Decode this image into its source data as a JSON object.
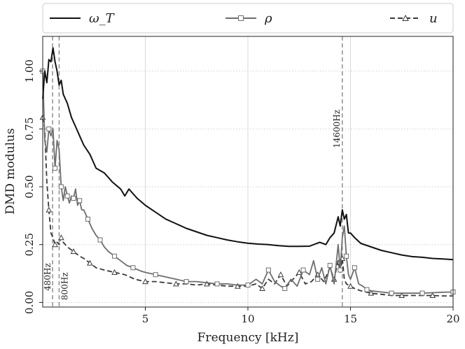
{
  "chart_data": {
    "type": "line",
    "title": "",
    "xlabel": "Frequency [kHz]",
    "ylabel": "DMD modulus",
    "xlim": [
      0,
      20
    ],
    "ylim": [
      -0.02,
      1.15
    ],
    "grid": true,
    "legend_position": "top",
    "xticks": [
      5,
      10,
      15,
      20
    ],
    "xtick_labels": [
      "5",
      "10",
      "15",
      "20"
    ],
    "yticks": [
      0.0,
      0.25,
      0.5,
      0.75,
      1.0
    ],
    "ytick_labels": [
      "0.00",
      "0.25",
      "0.50",
      "0.75",
      "1.00"
    ],
    "reference_lines": [
      {
        "x": 0.48,
        "label": "480Hz"
      },
      {
        "x": 0.8,
        "label": "800Hz"
      },
      {
        "x": 14.6,
        "label": "14600Hz"
      }
    ],
    "series": [
      {
        "name": "ω_T",
        "color": "#111111",
        "style": "solid",
        "marker": "none",
        "x": [
          0.0,
          0.1,
          0.2,
          0.3,
          0.4,
          0.5,
          0.6,
          0.7,
          0.8,
          0.9,
          1.0,
          1.2,
          1.4,
          1.6,
          1.8,
          2.0,
          2.3,
          2.6,
          3.0,
          3.4,
          3.8,
          4.0,
          4.2,
          4.6,
          5.0,
          5.5,
          6.0,
          6.5,
          7.0,
          7.5,
          8.0,
          8.5,
          9.0,
          9.5,
          10.0,
          10.5,
          11.0,
          11.5,
          12.0,
          12.5,
          13.0,
          13.5,
          13.8,
          14.0,
          14.2,
          14.4,
          14.5,
          14.6,
          14.7,
          14.8,
          14.9,
          15.0,
          15.2,
          15.5,
          16.0,
          16.5,
          17.0,
          17.5,
          18.0,
          18.5,
          19.0,
          19.5,
          20.0
        ],
        "y": [
          0.88,
          1.0,
          0.95,
          1.05,
          1.04,
          1.1,
          1.04,
          1.0,
          0.94,
          0.96,
          0.9,
          0.86,
          0.8,
          0.76,
          0.72,
          0.68,
          0.64,
          0.58,
          0.56,
          0.52,
          0.49,
          0.46,
          0.49,
          0.45,
          0.42,
          0.39,
          0.36,
          0.34,
          0.32,
          0.305,
          0.29,
          0.28,
          0.27,
          0.262,
          0.256,
          0.252,
          0.25,
          0.245,
          0.242,
          0.242,
          0.243,
          0.26,
          0.25,
          0.28,
          0.3,
          0.37,
          0.33,
          0.4,
          0.36,
          0.38,
          0.3,
          0.3,
          0.28,
          0.255,
          0.24,
          0.225,
          0.215,
          0.205,
          0.198,
          0.195,
          0.19,
          0.188,
          0.185
        ]
      },
      {
        "name": "ρ",
        "color": "#6e6e6e",
        "style": "solid",
        "marker": "square",
        "x": [
          0.0,
          0.1,
          0.2,
          0.3,
          0.4,
          0.5,
          0.6,
          0.7,
          0.8,
          0.9,
          1.0,
          1.1,
          1.2,
          1.3,
          1.4,
          1.5,
          1.6,
          1.7,
          1.8,
          1.9,
          2.0,
          2.2,
          2.4,
          2.6,
          2.8,
          3.0,
          3.2,
          3.5,
          3.8,
          4.1,
          4.4,
          4.8,
          5.0,
          5.5,
          6.0,
          6.5,
          7.0,
          7.5,
          8.0,
          8.5,
          9.0,
          9.5,
          10.0,
          10.4,
          10.7,
          11.0,
          11.3,
          11.6,
          11.8,
          12.1,
          12.4,
          12.7,
          13.0,
          13.2,
          13.4,
          13.6,
          13.8,
          14.0,
          14.2,
          14.4,
          14.5,
          14.6,
          14.7,
          14.8,
          14.9,
          15.0,
          15.2,
          15.4,
          15.6,
          15.8,
          16.0,
          16.5,
          17.0,
          17.5,
          18.0,
          18.5,
          19.0,
          19.5,
          20.0
        ],
        "y": [
          1.0,
          0.7,
          0.65,
          0.75,
          0.72,
          0.75,
          0.58,
          0.7,
          0.66,
          0.5,
          0.44,
          0.5,
          0.46,
          0.43,
          0.46,
          0.45,
          0.49,
          0.42,
          0.44,
          0.4,
          0.4,
          0.36,
          0.32,
          0.29,
          0.27,
          0.24,
          0.22,
          0.2,
          0.18,
          0.16,
          0.15,
          0.135,
          0.13,
          0.12,
          0.11,
          0.1,
          0.09,
          0.09,
          0.085,
          0.08,
          0.08,
          0.075,
          0.075,
          0.1,
          0.08,
          0.14,
          0.09,
          0.07,
          0.06,
          0.1,
          0.07,
          0.14,
          0.12,
          0.18,
          0.1,
          0.15,
          0.08,
          0.16,
          0.08,
          0.25,
          0.14,
          0.28,
          0.33,
          0.2,
          0.12,
          0.1,
          0.15,
          0.08,
          0.07,
          0.055,
          0.05,
          0.045,
          0.04,
          0.04,
          0.04,
          0.04,
          0.042,
          0.044,
          0.045
        ]
      },
      {
        "name": "u",
        "color": "#3a3a3a",
        "style": "dashed",
        "marker": "triangle",
        "x": [
          0.0,
          0.1,
          0.2,
          0.3,
          0.4,
          0.5,
          0.6,
          0.7,
          0.8,
          0.9,
          1.0,
          1.2,
          1.5,
          1.8,
          2.0,
          2.3,
          2.6,
          3.0,
          3.5,
          4.0,
          4.5,
          5.0,
          5.5,
          6.0,
          6.5,
          7.0,
          7.5,
          8.0,
          8.5,
          9.0,
          9.5,
          10.0,
          10.4,
          10.7,
          11.0,
          11.3,
          11.6,
          11.9,
          12.2,
          12.5,
          12.8,
          13.1,
          13.4,
          13.7,
          14.0,
          14.2,
          14.4,
          14.5,
          14.6,
          14.7,
          14.8,
          15.0,
          15.2,
          15.5,
          16.0,
          16.5,
          17.0,
          17.5,
          18.0,
          18.5,
          19.0,
          19.5,
          20.0
        ],
        "y": [
          0.8,
          0.75,
          0.52,
          0.4,
          0.3,
          0.28,
          0.25,
          0.26,
          0.25,
          0.28,
          0.26,
          0.24,
          0.22,
          0.2,
          0.19,
          0.17,
          0.15,
          0.14,
          0.13,
          0.12,
          0.1,
          0.09,
          0.09,
          0.085,
          0.08,
          0.08,
          0.075,
          0.08,
          0.075,
          0.07,
          0.07,
          0.07,
          0.08,
          0.06,
          0.1,
          0.08,
          0.12,
          0.07,
          0.1,
          0.13,
          0.08,
          0.09,
          0.12,
          0.09,
          0.15,
          0.1,
          0.18,
          0.13,
          0.19,
          0.1,
          0.08,
          0.07,
          0.06,
          0.05,
          0.04,
          0.035,
          0.03,
          0.03,
          0.03,
          0.03,
          0.03,
          0.028,
          0.028
        ]
      }
    ]
  }
}
